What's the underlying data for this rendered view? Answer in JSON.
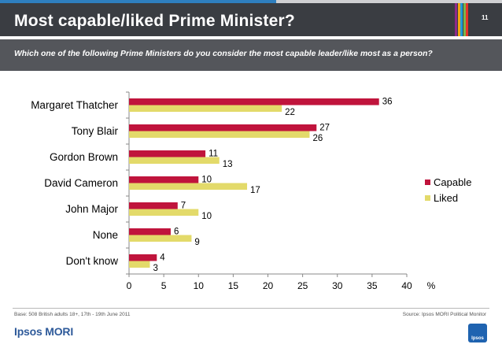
{
  "header": {
    "title": "Most capable/liked Prime Minister?",
    "page_number": "11",
    "stripe_colors": [
      "#8e2a8b",
      "#f3a712",
      "#1f9bd7",
      "#7ab648",
      "#e6332a"
    ]
  },
  "subtitle": "Which one of the following Prime Ministers do you consider the most capable leader/like most as a person?",
  "chart_data": {
    "type": "bar",
    "orientation": "horizontal",
    "categories": [
      "Margaret Thatcher",
      "Tony Blair",
      "Gordon Brown",
      "David Cameron",
      "John Major",
      "None",
      "Don't know"
    ],
    "series": [
      {
        "name": "Capable",
        "color": "#c0143c",
        "values": [
          36,
          27,
          11,
          10,
          7,
          6,
          4
        ]
      },
      {
        "name": "Liked",
        "color": "#e3da6a",
        "values": [
          22,
          26,
          13,
          17,
          10,
          9,
          3
        ]
      }
    ],
    "xlim": [
      0,
      40
    ],
    "xticks": [
      0,
      5,
      10,
      15,
      20,
      25,
      30,
      35,
      40
    ],
    "xlabel": "%",
    "legend_position": "right"
  },
  "footer": {
    "base": "Base: 508 British adults 18+, 17th - 19th June 2011",
    "source": "Source: Ipsos MORI Political Monitor",
    "logo": "Ipsos MORI",
    "badge": "Ipsos"
  }
}
